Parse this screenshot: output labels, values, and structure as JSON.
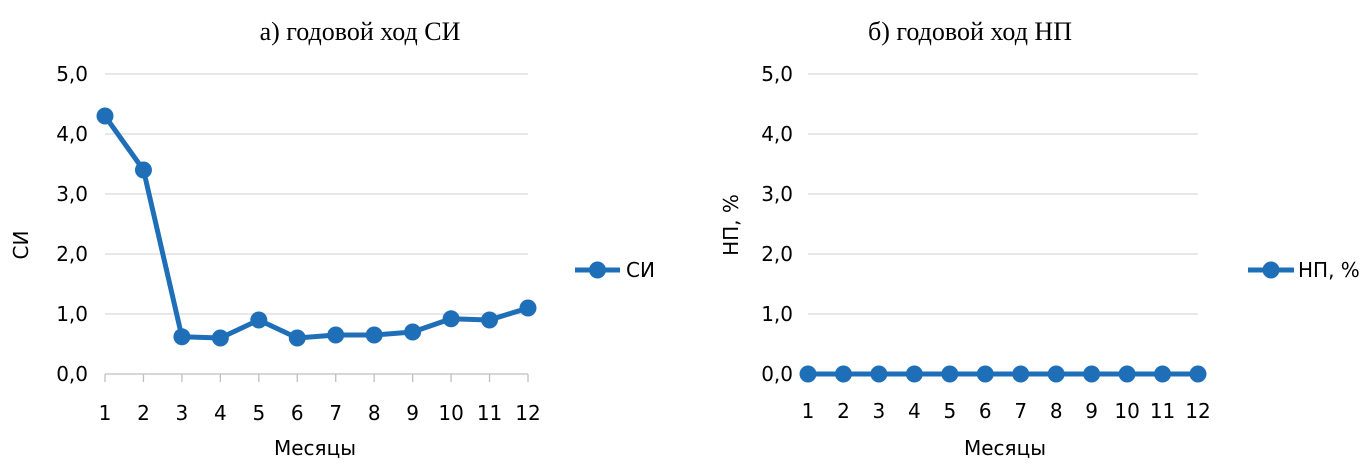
{
  "chart_data": [
    {
      "type": "line",
      "title": "а) годовой ход СИ",
      "xlabel": "Месяцы",
      "ylabel": "СИ",
      "categories": [
        "1",
        "2",
        "3",
        "4",
        "5",
        "6",
        "7",
        "8",
        "9",
        "10",
        "11",
        "12"
      ],
      "y_ticks": [
        "0,0",
        "1,0",
        "2,0",
        "3,0",
        "4,0",
        "5,0"
      ],
      "ylim": [
        0,
        5
      ],
      "grid": true,
      "legend_position": "right",
      "series": [
        {
          "name": "СИ",
          "color": "#1f6fb8",
          "values": [
            4.3,
            3.4,
            0.62,
            0.6,
            0.9,
            0.6,
            0.65,
            0.65,
            0.7,
            0.92,
            0.9,
            1.1
          ]
        }
      ]
    },
    {
      "type": "line",
      "title": "б) годовой ход НП",
      "xlabel": "Месяцы",
      "ylabel": "НП, %",
      "categories": [
        "1",
        "2",
        "3",
        "4",
        "5",
        "6",
        "7",
        "8",
        "9",
        "10",
        "11",
        "12"
      ],
      "y_ticks": [
        "0,0",
        "1,0",
        "2,0",
        "3,0",
        "4,0",
        "5,0"
      ],
      "ylim": [
        0,
        5
      ],
      "grid": true,
      "legend_position": "right",
      "series": [
        {
          "name": "НП, %",
          "color": "#1f6fb8",
          "values": [
            0,
            0,
            0,
            0,
            0,
            0,
            0,
            0,
            0,
            0,
            0,
            0
          ]
        }
      ]
    }
  ]
}
